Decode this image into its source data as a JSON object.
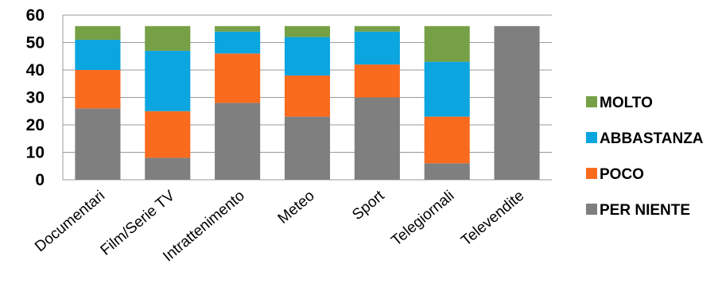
{
  "chart_data": {
    "type": "bar",
    "stacked": true,
    "categories": [
      "Documentari",
      "Film/Serie TV",
      "Intrattenimento",
      "Meteo",
      "Sport",
      "Telegiornali",
      "Televendite"
    ],
    "series": [
      {
        "name": "PER NIENTE",
        "color": "#7F7F7F",
        "values": [
          26,
          8,
          28,
          23,
          30,
          6,
          56
        ]
      },
      {
        "name": "POCO",
        "color": "#FA6B1E",
        "values": [
          14,
          17,
          18,
          15,
          12,
          17,
          0
        ]
      },
      {
        "name": "ABBASTANZA",
        "color": "#0BA5E0",
        "values": [
          11,
          22,
          8,
          14,
          12,
          20,
          0
        ]
      },
      {
        "name": "MOLTO",
        "color": "#76A046",
        "values": [
          5,
          9,
          2,
          4,
          2,
          13,
          0
        ]
      }
    ],
    "ylim": [
      0,
      60
    ],
    "yticks": [
      0,
      10,
      20,
      30,
      40,
      50,
      60
    ],
    "grid": true,
    "legend": "right",
    "title": "",
    "xlabel": "",
    "ylabel": ""
  }
}
